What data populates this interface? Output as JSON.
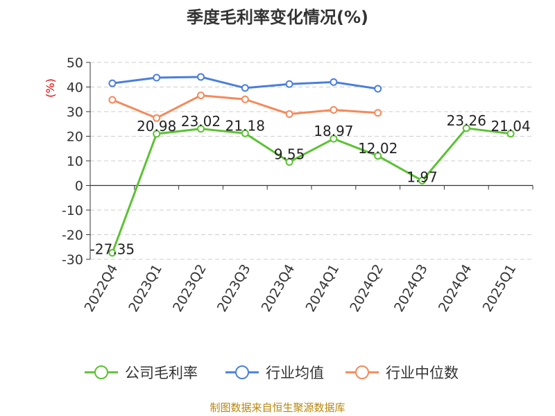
{
  "chart_data": {
    "type": "line",
    "title": "季度毛利率变化情况(%)",
    "ylabel": "(%)",
    "categories": [
      "2022Q4",
      "2023Q1",
      "2023Q2",
      "2023Q3",
      "2023Q4",
      "2024Q1",
      "2024Q2",
      "2024Q3",
      "2024Q4",
      "2025Q1"
    ],
    "ylim": [
      -30,
      50
    ],
    "yticks": [
      50,
      40,
      30,
      20,
      10,
      0,
      -10,
      -20,
      -30
    ],
    "grid": true,
    "legend_position": "bottom",
    "series": [
      {
        "name": "公司毛利率",
        "color": "#5bc232",
        "labeled": true,
        "values": [
          -27.35,
          20.98,
          23.02,
          21.18,
          9.55,
          18.97,
          12.02,
          1.97,
          23.26,
          21.04
        ],
        "labels": [
          "-27.35",
          "20.98",
          "23.02",
          "21.18",
          "9.55",
          "18.97",
          "12.02",
          "1.97",
          "23.26",
          "21.04"
        ]
      },
      {
        "name": "行业均值",
        "color": "#4a7fdc",
        "labeled": false,
        "values": [
          41.5,
          43.8,
          44.1,
          39.6,
          41.2,
          42.0,
          39.3,
          null,
          null,
          null
        ]
      },
      {
        "name": "行业中位数",
        "color": "#f5895a",
        "labeled": false,
        "values": [
          34.8,
          27.4,
          36.6,
          35.0,
          29.0,
          30.7,
          29.5,
          null,
          null,
          null
        ]
      }
    ]
  },
  "source": "制图数据来自恒生聚源数据库"
}
